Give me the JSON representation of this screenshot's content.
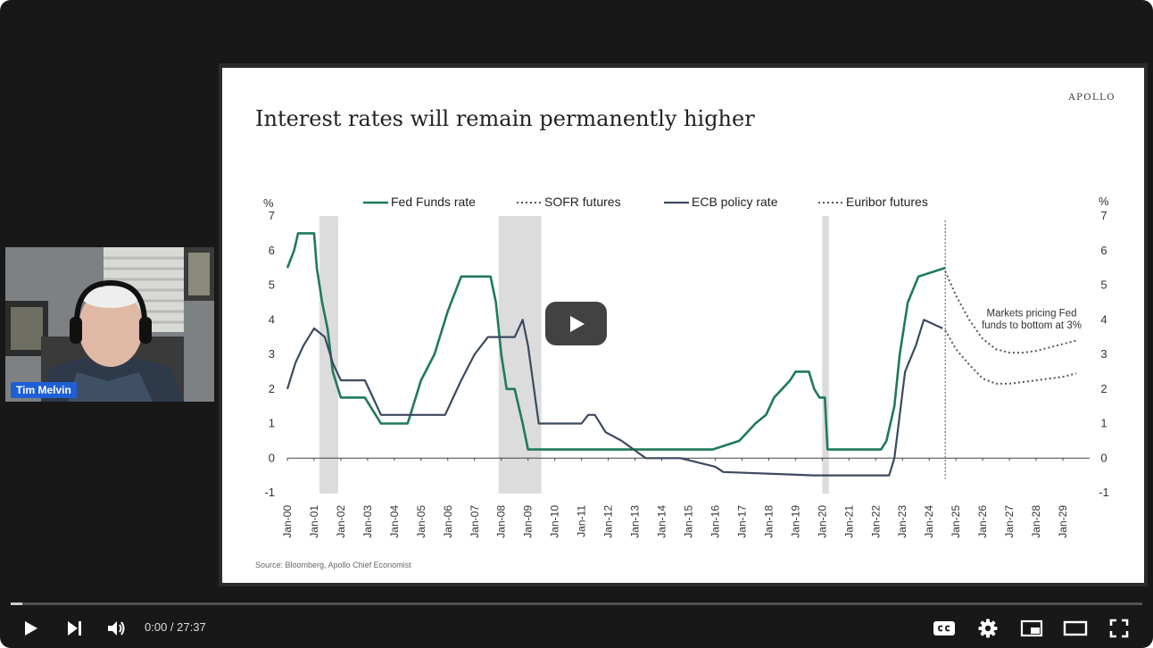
{
  "slide": {
    "title": "Interest rates will remain permanently higher",
    "brand": "APOLLO",
    "source": "Source: Bloomberg, Apollo Chief Economist"
  },
  "presenter": {
    "name": "Tim Melvin"
  },
  "player": {
    "current_time": "0:00",
    "duration": "27:37",
    "time_separator": " / ",
    "progress": 0.01
  },
  "icons": {
    "play": "play-icon",
    "next": "next-icon",
    "volume": "volume-icon",
    "captions": "captions-icon",
    "settings": "gear-icon",
    "miniplayer": "miniplayer-icon",
    "theater": "theater-icon",
    "fullscreen": "fullscreen-icon",
    "big_play": "big-play-icon"
  },
  "colors": {
    "fed": "#1e7a5a",
    "ecb": "#3b4a5e",
    "futures": "#555555",
    "shade": "#dcdcdc",
    "youtube_overlay": "#212121"
  },
  "chart_data": {
    "type": "line",
    "title": "",
    "ylabel_left": "%",
    "ylabel_right": "%",
    "ylim": [
      -1,
      7
    ],
    "yticks": [
      -1,
      0,
      1,
      2,
      3,
      4,
      5,
      6,
      7
    ],
    "xlim": [
      2000,
      2030
    ],
    "x_ticks": [
      "Jan-00",
      "Jan-01",
      "Jan-02",
      "Jan-03",
      "Jan-04",
      "Jan-05",
      "Jan-06",
      "Jan-07",
      "Jan-08",
      "Jan-09",
      "Jan-10",
      "Jan-11",
      "Jan-12",
      "Jan-13",
      "Jan-14",
      "Jan-15",
      "Jan-16",
      "Jan-17",
      "Jan-18",
      "Jan-19",
      "Jan-20",
      "Jan-21",
      "Jan-22",
      "Jan-23",
      "Jan-24",
      "Jan-25",
      "Jan-26",
      "Jan-27",
      "Jan-28",
      "Jan-29"
    ],
    "legend": [
      "Fed Funds rate",
      "SOFR futures",
      "ECB policy rate",
      "Euribor futures"
    ],
    "legend_position": "top",
    "recessions": [
      [
        2001.2,
        2001.9
      ],
      [
        2007.9,
        2009.5
      ],
      [
        2020.0,
        2020.25
      ]
    ],
    "annotation": {
      "text_line1": "Markets pricing Fed",
      "text_line2": "funds to bottom at 3%"
    },
    "series": [
      {
        "name": "Fed Funds rate",
        "style": "solid",
        "x": [
          2000.0,
          2000.25,
          2000.4,
          2001.0,
          2001.1,
          2001.3,
          2001.5,
          2001.7,
          2002.0,
          2002.9,
          2003.5,
          2004.5,
          2004.7,
          2005.0,
          2005.5,
          2006.0,
          2006.5,
          2007.6,
          2007.8,
          2008.0,
          2008.2,
          2008.5,
          2008.8,
          2009.0,
          2015.9,
          2016.9,
          2017.2,
          2017.5,
          2017.9,
          2018.2,
          2018.5,
          2018.8,
          2019.0,
          2019.5,
          2019.7,
          2019.9,
          2020.1,
          2020.2,
          2022.2,
          2022.4,
          2022.7,
          2022.9,
          2023.2,
          2023.6,
          2024.6
        ],
        "y": [
          5.5,
          6.0,
          6.5,
          6.5,
          5.5,
          4.5,
          3.75,
          2.5,
          1.75,
          1.75,
          1.0,
          1.0,
          1.5,
          2.25,
          3.0,
          4.25,
          5.25,
          5.25,
          4.5,
          3.0,
          2.0,
          2.0,
          1.0,
          0.25,
          0.25,
          0.5,
          0.75,
          1.0,
          1.25,
          1.75,
          2.0,
          2.25,
          2.5,
          2.5,
          2.0,
          1.75,
          1.75,
          0.25,
          0.25,
          0.5,
          1.5,
          3.0,
          4.5,
          5.25,
          5.5
        ]
      },
      {
        "name": "ECB policy rate",
        "style": "solid",
        "x": [
          2000.0,
          2000.3,
          2000.6,
          2000.8,
          2001.0,
          2001.4,
          2001.7,
          2002.0,
          2002.9,
          2003.2,
          2003.5,
          2005.9,
          2006.2,
          2006.5,
          2007.0,
          2007.5,
          2008.5,
          2008.8,
          2009.0,
          2009.4,
          2011.0,
          2011.25,
          2011.5,
          2011.9,
          2012.5,
          2013.4,
          2014.0,
          2014.7,
          2016.0,
          2016.3,
          2019.7,
          2022.5,
          2022.7,
          2022.9,
          2023.1,
          2023.5,
          2023.8,
          2024.5
        ],
        "y": [
          2.0,
          2.75,
          3.25,
          3.5,
          3.75,
          3.5,
          2.75,
          2.25,
          2.25,
          1.75,
          1.25,
          1.25,
          1.75,
          2.25,
          3.0,
          3.5,
          3.5,
          4.0,
          3.25,
          1.0,
          1.0,
          1.25,
          1.25,
          0.75,
          0.5,
          0.0,
          0.0,
          0.0,
          -0.25,
          -0.4,
          -0.5,
          -0.5,
          0.0,
          1.25,
          2.5,
          3.25,
          4.0,
          3.75
        ]
      },
      {
        "name": "SOFR futures",
        "style": "dotted",
        "x": [
          2024.6,
          2025.0,
          2025.5,
          2026.0,
          2026.5,
          2027.0,
          2027.5,
          2028.0,
          2028.5,
          2029.0,
          2029.5
        ],
        "y": [
          5.4,
          4.7,
          4.0,
          3.45,
          3.15,
          3.05,
          3.05,
          3.1,
          3.2,
          3.3,
          3.4
        ]
      },
      {
        "name": "Euribor futures",
        "style": "dotted",
        "x": [
          2024.6,
          2025.0,
          2025.5,
          2026.0,
          2026.5,
          2027.0,
          2027.5,
          2028.0,
          2028.5,
          2029.0,
          2029.5
        ],
        "y": [
          3.7,
          3.15,
          2.7,
          2.3,
          2.15,
          2.15,
          2.2,
          2.25,
          2.3,
          2.35,
          2.45
        ]
      }
    ],
    "forecast_divider_x": 2024.6
  }
}
